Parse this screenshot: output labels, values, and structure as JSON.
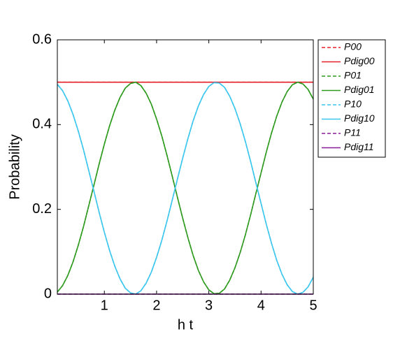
{
  "chart_data": {
    "type": "line",
    "xlabel": "h t",
    "ylabel": "Probability",
    "x": [
      0.1,
      0.2,
      0.3,
      0.4,
      0.5,
      0.6,
      0.7,
      0.8,
      0.9,
      1.0,
      1.1,
      1.2,
      1.3,
      1.4,
      1.5,
      1.6,
      1.7,
      1.8,
      1.9,
      2.0,
      2.1,
      2.2,
      2.3,
      2.4,
      2.5,
      2.6,
      2.7,
      2.8,
      2.9,
      3.0,
      3.1,
      3.2,
      3.3,
      3.4,
      3.5,
      3.6,
      3.7,
      3.8,
      3.9,
      4.0,
      4.1,
      4.2,
      4.3,
      4.4,
      4.5,
      4.6,
      4.7,
      4.8,
      4.9,
      5.0
    ],
    "xlim": [
      0.1,
      5
    ],
    "xticks": [
      1,
      2,
      3,
      4,
      5
    ],
    "ylim": [
      0,
      0.6
    ],
    "yticks": [
      0,
      0.2,
      0.4,
      0.6
    ],
    "legend": "outside-right",
    "series": [
      {
        "name": "P00",
        "color": "#e6202a",
        "dashed": true,
        "values": [
          0.5,
          0.5,
          0.5,
          0.5,
          0.5,
          0.5,
          0.5,
          0.5,
          0.5,
          0.5,
          0.5,
          0.5,
          0.5,
          0.5,
          0.5,
          0.5,
          0.5,
          0.5,
          0.5,
          0.5,
          0.5,
          0.5,
          0.5,
          0.5,
          0.5,
          0.5,
          0.5,
          0.5,
          0.5,
          0.5,
          0.5,
          0.5,
          0.5,
          0.5,
          0.5,
          0.5,
          0.5,
          0.5,
          0.5,
          0.5,
          0.5,
          0.5,
          0.5,
          0.5,
          0.5,
          0.5,
          0.5,
          0.5,
          0.5,
          0.5
        ]
      },
      {
        "name": "Pdig00",
        "color": "#e6202a",
        "dashed": false,
        "values": [
          0.5,
          0.5,
          0.5,
          0.5,
          0.5,
          0.5,
          0.5,
          0.5,
          0.5,
          0.5,
          0.5,
          0.5,
          0.5,
          0.5,
          0.5,
          0.5,
          0.5,
          0.5,
          0.5,
          0.5,
          0.5,
          0.5,
          0.5,
          0.5,
          0.5,
          0.5,
          0.5,
          0.5,
          0.5,
          0.5,
          0.5,
          0.5,
          0.5,
          0.5,
          0.5,
          0.5,
          0.5,
          0.5,
          0.5,
          0.5,
          0.5,
          0.5,
          0.5,
          0.5,
          0.5,
          0.5,
          0.5,
          0.5,
          0.5,
          0.5
        ]
      },
      {
        "name": "P01",
        "color": "#2e9a1e",
        "dashed": true,
        "values": [
          0.005,
          0.02,
          0.044,
          0.076,
          0.115,
          0.159,
          0.208,
          0.257,
          0.307,
          0.354,
          0.397,
          0.434,
          0.464,
          0.486,
          0.497,
          0.5,
          0.492,
          0.474,
          0.448,
          0.413,
          0.373,
          0.327,
          0.278,
          0.228,
          0.179,
          0.133,
          0.091,
          0.056,
          0.029,
          0.01,
          0.001,
          0.002,
          0.012,
          0.033,
          0.062,
          0.098,
          0.14,
          0.187,
          0.237,
          0.286,
          0.335,
          0.38,
          0.42,
          0.453,
          0.478,
          0.494,
          0.5,
          0.496,
          0.483,
          0.46
        ]
      },
      {
        "name": "Pdig01",
        "color": "#2e9a1e",
        "dashed": false,
        "values": [
          0.005,
          0.02,
          0.044,
          0.076,
          0.115,
          0.159,
          0.208,
          0.257,
          0.307,
          0.354,
          0.397,
          0.434,
          0.464,
          0.486,
          0.497,
          0.5,
          0.492,
          0.474,
          0.448,
          0.413,
          0.373,
          0.327,
          0.278,
          0.228,
          0.179,
          0.133,
          0.091,
          0.056,
          0.029,
          0.01,
          0.001,
          0.002,
          0.012,
          0.033,
          0.062,
          0.098,
          0.14,
          0.187,
          0.237,
          0.286,
          0.335,
          0.38,
          0.42,
          0.453,
          0.478,
          0.494,
          0.5,
          0.496,
          0.483,
          0.46
        ]
      },
      {
        "name": "P10",
        "color": "#3cc6ee",
        "dashed": true,
        "values": [
          0.495,
          0.48,
          0.456,
          0.424,
          0.385,
          0.341,
          0.292,
          0.243,
          0.193,
          0.146,
          0.103,
          0.066,
          0.036,
          0.014,
          0.003,
          0.0,
          0.008,
          0.026,
          0.052,
          0.087,
          0.127,
          0.173,
          0.222,
          0.272,
          0.321,
          0.367,
          0.409,
          0.444,
          0.471,
          0.49,
          0.499,
          0.498,
          0.488,
          0.467,
          0.438,
          0.402,
          0.36,
          0.313,
          0.263,
          0.214,
          0.165,
          0.12,
          0.08,
          0.047,
          0.022,
          0.006,
          0.0,
          0.004,
          0.017,
          0.04
        ]
      },
      {
        "name": "Pdig10",
        "color": "#3cc6ee",
        "dashed": false,
        "values": [
          0.495,
          0.48,
          0.456,
          0.424,
          0.385,
          0.341,
          0.292,
          0.243,
          0.193,
          0.146,
          0.103,
          0.066,
          0.036,
          0.014,
          0.003,
          0.0,
          0.008,
          0.026,
          0.052,
          0.087,
          0.127,
          0.173,
          0.222,
          0.272,
          0.321,
          0.367,
          0.409,
          0.444,
          0.471,
          0.49,
          0.499,
          0.498,
          0.488,
          0.467,
          0.438,
          0.402,
          0.36,
          0.313,
          0.263,
          0.214,
          0.165,
          0.12,
          0.08,
          0.047,
          0.022,
          0.006,
          0.0,
          0.004,
          0.017,
          0.04
        ]
      },
      {
        "name": "P11",
        "color": "#8a1c9a",
        "dashed": true,
        "values": [
          0,
          0,
          0,
          0,
          0,
          0,
          0,
          0,
          0,
          0,
          0,
          0,
          0,
          0,
          0,
          0,
          0,
          0,
          0,
          0,
          0,
          0,
          0,
          0,
          0,
          0,
          0,
          0,
          0,
          0,
          0,
          0,
          0,
          0,
          0,
          0,
          0,
          0,
          0,
          0,
          0,
          0,
          0,
          0,
          0,
          0,
          0,
          0,
          0,
          0
        ]
      },
      {
        "name": "Pdig11",
        "color": "#8a1c9a",
        "dashed": false,
        "values": [
          0,
          0,
          0,
          0,
          0,
          0,
          0,
          0,
          0,
          0,
          0,
          0,
          0,
          0,
          0,
          0,
          0,
          0,
          0,
          0,
          0,
          0,
          0,
          0,
          0,
          0,
          0,
          0,
          0,
          0,
          0,
          0,
          0,
          0,
          0,
          0,
          0,
          0,
          0,
          0,
          0,
          0,
          0,
          0,
          0,
          0,
          0,
          0,
          0,
          0
        ]
      }
    ]
  }
}
